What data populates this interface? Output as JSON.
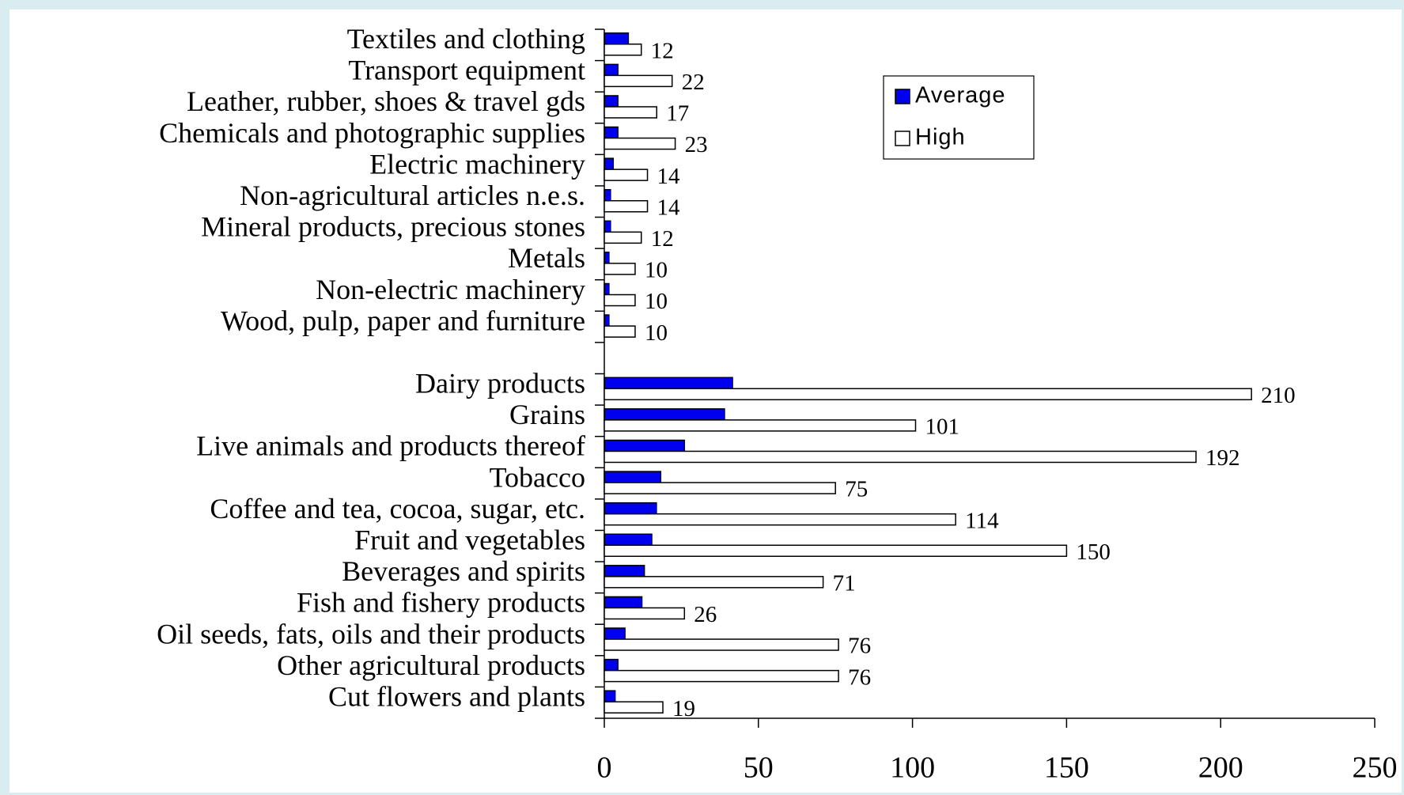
{
  "chart_data": {
    "type": "barh",
    "categories": [
      "Textiles and clothing",
      "Transport equipment",
      "Leather, rubber, shoes & travel gds",
      "Chemicals and photographic supplies",
      "Electric machinery",
      "Non-agricultural articles n.e.s.",
      "Mineral products, precious stones",
      "Metals",
      "Non-electric machinery",
      "Wood, pulp, paper and furniture",
      null,
      "Dairy products",
      "Grains",
      "Live animals and products thereof",
      "Tobacco",
      "Coffee and  tea, cocoa, sugar, etc.",
      "Fruit and vegetables",
      "Beverages and spirits",
      "Fish and fishery products",
      "Oil seeds, fats, oils and their products",
      "Other agricultural products",
      "Cut flowers and plants"
    ],
    "series": [
      {
        "name": "Average",
        "color": "#0000ee",
        "values": [
          7.8,
          4.4,
          4.4,
          4.4,
          2.9,
          2,
          2,
          1.5,
          1.5,
          1.5,
          null,
          41.6,
          39,
          26,
          18.3,
          16.9,
          15.4,
          13,
          12.2,
          6.7,
          4.4,
          3.5
        ]
      },
      {
        "name": "High",
        "color": "#ffffff",
        "values": [
          12,
          22,
          17,
          23,
          14,
          14,
          12,
          10,
          10,
          10,
          null,
          210,
          101,
          192,
          75,
          114,
          150,
          71,
          26,
          76,
          76,
          19
        ]
      }
    ],
    "xlim": [
      0,
      250
    ],
    "xticks": [
      0,
      50,
      100,
      150,
      200,
      250
    ],
    "legend": "top-right"
  }
}
